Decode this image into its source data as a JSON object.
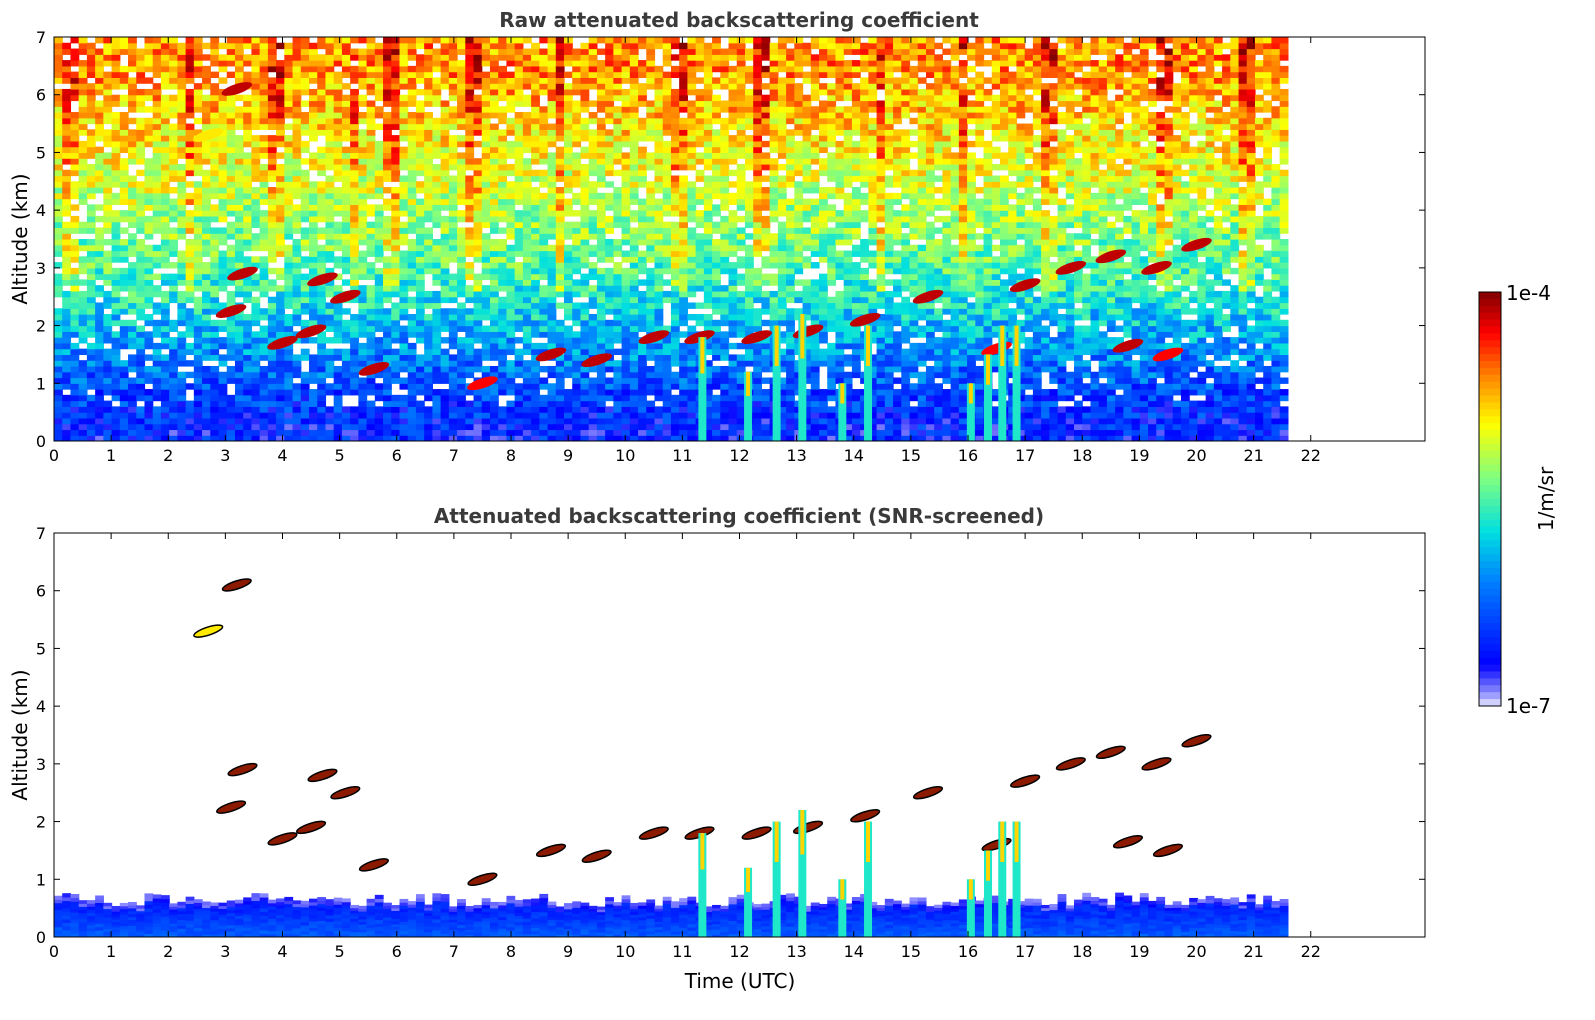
{
  "chart_data": [
    {
      "type": "heatmap",
      "title": "Raw attenuated backscattering coefficient",
      "xlabel": "",
      "ylabel": "Altitude (km)",
      "xlim": [
        0,
        24
      ],
      "ylim": [
        0,
        7
      ],
      "x_ticks": [
        0,
        1,
        2,
        3,
        4,
        5,
        6,
        7,
        8,
        9,
        10,
        11,
        12,
        13,
        14,
        15,
        16,
        17,
        18,
        19,
        20,
        21,
        22
      ],
      "y_ticks": [
        0,
        1,
        2,
        3,
        4,
        5,
        6,
        7
      ],
      "data_end_time": 21.6,
      "background_profile": [
        {
          "alt": 0.25,
          "level": 0.15
        },
        {
          "alt": 0.8,
          "level": 0.2
        },
        {
          "alt": 1.5,
          "level": 0.3
        },
        {
          "alt": 2.5,
          "level": 0.45
        },
        {
          "alt": 3.5,
          "level": 0.55
        },
        {
          "alt": 5.0,
          "level": 0.68
        },
        {
          "alt": 6.5,
          "level": 0.78
        }
      ],
      "cloud_features": [
        {
          "t": 3.2,
          "alt": 6.1,
          "level": 0.95
        },
        {
          "t": 2.7,
          "alt": 5.3,
          "level": 0.7
        },
        {
          "t": 3.3,
          "alt": 2.9,
          "level": 0.95
        },
        {
          "t": 3.1,
          "alt": 2.25,
          "level": 0.95
        },
        {
          "t": 4.0,
          "alt": 1.7,
          "level": 0.95
        },
        {
          "t": 4.5,
          "alt": 1.9,
          "level": 0.95
        },
        {
          "t": 4.7,
          "alt": 2.8,
          "level": 0.95
        },
        {
          "t": 5.1,
          "alt": 2.5,
          "level": 0.95
        },
        {
          "t": 5.6,
          "alt": 1.25,
          "level": 0.95
        },
        {
          "t": 7.5,
          "alt": 1.0,
          "level": 0.9
        },
        {
          "t": 8.7,
          "alt": 1.5,
          "level": 0.95
        },
        {
          "t": 9.5,
          "alt": 1.4,
          "level": 0.95
        },
        {
          "t": 10.5,
          "alt": 1.8,
          "level": 0.95
        },
        {
          "t": 11.3,
          "alt": 1.8,
          "level": 0.95
        },
        {
          "t": 12.3,
          "alt": 1.8,
          "level": 0.95
        },
        {
          "t": 13.2,
          "alt": 1.9,
          "level": 0.95
        },
        {
          "t": 14.2,
          "alt": 2.1,
          "level": 0.95
        },
        {
          "t": 15.3,
          "alt": 2.5,
          "level": 0.95
        },
        {
          "t": 16.5,
          "alt": 1.6,
          "level": 0.9
        },
        {
          "t": 17.0,
          "alt": 2.7,
          "level": 0.95
        },
        {
          "t": 17.8,
          "alt": 3.0,
          "level": 0.95
        },
        {
          "t": 18.5,
          "alt": 3.2,
          "level": 0.95
        },
        {
          "t": 18.8,
          "alt": 1.65,
          "level": 0.95
        },
        {
          "t": 19.3,
          "alt": 3.0,
          "level": 0.95
        },
        {
          "t": 20.0,
          "alt": 3.4,
          "level": 0.95
        },
        {
          "t": 19.5,
          "alt": 1.5,
          "level": 0.9
        }
      ],
      "precip_columns": [
        {
          "t": 11.35,
          "top": 1.8
        },
        {
          "t": 12.15,
          "top": 1.2
        },
        {
          "t": 12.65,
          "top": 2.0
        },
        {
          "t": 13.1,
          "top": 2.2
        },
        {
          "t": 13.8,
          "top": 1.0
        },
        {
          "t": 14.25,
          "top": 2.0
        },
        {
          "t": 16.05,
          "top": 1.0
        },
        {
          "t": 16.35,
          "top": 1.5
        },
        {
          "t": 16.6,
          "top": 2.0
        },
        {
          "t": 16.85,
          "top": 2.0
        }
      ]
    },
    {
      "type": "heatmap",
      "title": "Attenuated backscattering coefficient (SNR-screened)",
      "xlabel": "Time (UTC)",
      "ylabel": "Altitude (km)",
      "xlim": [
        0,
        24
      ],
      "ylim": [
        0,
        7
      ],
      "x_ticks": [
        0,
        1,
        2,
        3,
        4,
        5,
        6,
        7,
        8,
        9,
        10,
        11,
        12,
        13,
        14,
        15,
        16,
        17,
        18,
        19,
        20,
        21,
        22
      ],
      "y_ticks": [
        0,
        1,
        2,
        3,
        4,
        5,
        6,
        7
      ],
      "data_end_time": 21.6,
      "boundary_layer_top": 0.7,
      "colorbar": {
        "label": "1/m/sr",
        "min_label": "1e-7",
        "max_label": "1e-4",
        "colormap": "jet"
      }
    }
  ],
  "colors": {
    "title": "#3a3a3a",
    "axis": "#000000"
  }
}
